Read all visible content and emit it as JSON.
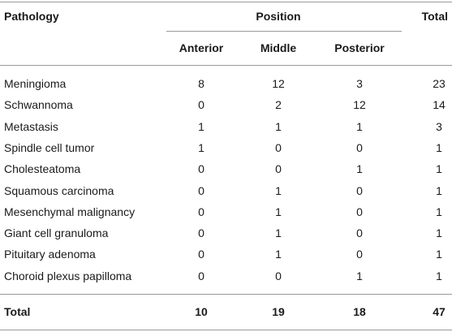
{
  "table": {
    "header": {
      "pathology": "Pathology",
      "position": "Position",
      "total": "Total",
      "subheaders": [
        "Anterior",
        "Middle",
        "Posterior"
      ]
    },
    "rows": [
      [
        "Meningioma",
        8,
        12,
        3,
        23
      ],
      [
        "Schwannoma",
        0,
        2,
        12,
        14
      ],
      [
        "Metastasis",
        1,
        1,
        1,
        3
      ],
      [
        "Spindle cell tumor",
        1,
        0,
        0,
        1
      ],
      [
        "Cholesteatoma",
        0,
        0,
        1,
        1
      ],
      [
        "Squamous carcinoma",
        0,
        1,
        0,
        1
      ],
      [
        "Mesenchymal malignancy",
        0,
        1,
        0,
        1
      ],
      [
        "Giant cell granuloma",
        0,
        1,
        0,
        1
      ],
      [
        "Pituitary adenoma",
        0,
        1,
        0,
        1
      ],
      [
        "Choroid plexus papilloma",
        0,
        0,
        1,
        1
      ]
    ],
    "total_row": [
      "Total",
      10,
      19,
      18,
      47
    ]
  }
}
